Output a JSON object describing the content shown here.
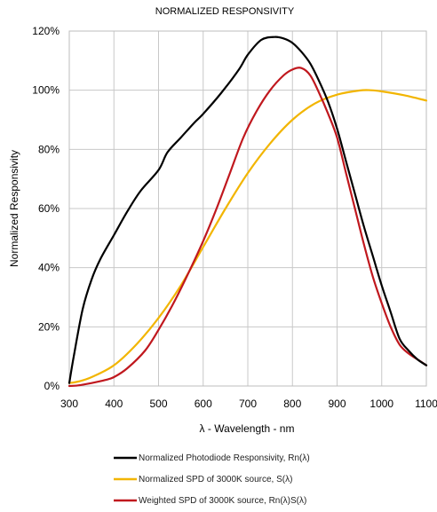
{
  "chart_data": {
    "type": "line",
    "title": "NORMALIZED RESPONSIVITY",
    "xlabel": "λ - Wavelength - nm",
    "ylabel": "Normalized Responsivity",
    "xlim": [
      300,
      1100
    ],
    "ylim": [
      0,
      120
    ],
    "x_ticks": [
      300,
      400,
      500,
      600,
      700,
      800,
      900,
      1000,
      1100
    ],
    "x_tick_labels": [
      "300",
      "400",
      "500",
      "600",
      "700",
      "800",
      "900",
      "1000",
      "1100"
    ],
    "y_ticks": [
      0,
      20,
      40,
      60,
      80,
      100,
      120
    ],
    "y_tick_labels": [
      "0%",
      "20%",
      "40%",
      "60%",
      "80%",
      "100%",
      "120%"
    ],
    "grid": true,
    "legend_position": "bottom",
    "series": [
      {
        "name": "Normalized Photodiode Responsivity, Rn(λ)",
        "color": "#000000",
        "x": [
          300,
          310,
          330,
          350,
          370,
          400,
          430,
          460,
          500,
          520,
          550,
          580,
          600,
          640,
          680,
          700,
          730,
          760,
          780,
          800,
          820,
          840,
          860,
          880,
          900,
          920,
          940,
          960,
          980,
          1000,
          1020,
          1040,
          1060,
          1080,
          1100
        ],
        "y": [
          1,
          10,
          26,
          36,
          43,
          51,
          59,
          66,
          73,
          79,
          84,
          89,
          92,
          99,
          107,
          112,
          117,
          118,
          117.5,
          116,
          113,
          109,
          103,
          96,
          87,
          76,
          65,
          54,
          44,
          34,
          25,
          16,
          12,
          9,
          7
        ]
      },
      {
        "name": "Normalized SPD of 3000K source, S(λ)",
        "color": "#f2b500",
        "x": [
          300,
          320,
          350,
          400,
          450,
          500,
          550,
          600,
          650,
          700,
          750,
          800,
          850,
          900,
          950,
          975,
          1000,
          1050,
          1100
        ],
        "y": [
          1,
          1.5,
          3,
          7,
          14,
          23,
          34,
          47,
          60,
          72,
          82,
          90,
          95.5,
          98.5,
          99.9,
          100,
          99.6,
          98.3,
          96.5
        ]
      },
      {
        "name": "Weighted SPD of 3000K source, Rn(λ)S(λ)",
        "color": "#c0181e",
        "x": [
          300,
          320,
          350,
          380,
          400,
          430,
          470,
          500,
          530,
          560,
          600,
          630,
          660,
          690,
          720,
          750,
          780,
          800,
          820,
          840,
          860,
          880,
          900,
          920,
          940,
          960,
          980,
          1000,
          1020,
          1040,
          1060,
          1080,
          1100
        ],
        "y": [
          0,
          0.2,
          1,
          2,
          3,
          6,
          12,
          19,
          27,
          36,
          49,
          60,
          72,
          84,
          93,
          100,
          105,
          107,
          107.5,
          105,
          99,
          92,
          84,
          72,
          60,
          48,
          37,
          28,
          20,
          14,
          11,
          9,
          7
        ]
      }
    ]
  }
}
